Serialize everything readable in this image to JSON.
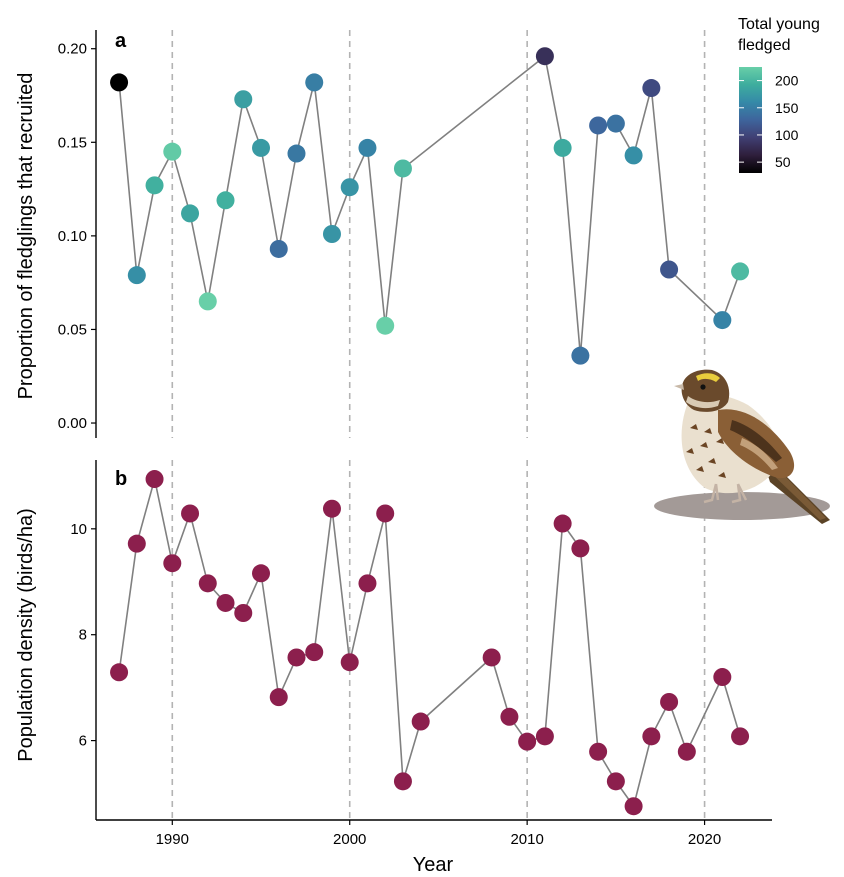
{
  "chart_data": [
    {
      "panel": "a",
      "type": "scatter",
      "ylabel": "Proportion of fledglings that recruited",
      "ylim": [
        -0.008,
        0.21
      ],
      "yticks": [
        0.0,
        0.05,
        0.1,
        0.15,
        0.2
      ],
      "ytick_labels": [
        "0.00",
        "0.05",
        "0.10",
        "0.15",
        "0.20"
      ],
      "connected": true,
      "color_legend": {
        "title_lines": [
          "Total young",
          "fledged"
        ],
        "labels": [
          "200",
          "150",
          "100",
          "50"
        ],
        "values": [
          200,
          150,
          100,
          50
        ],
        "range": [
          30,
          225
        ],
        "palette": [
          "#000000",
          "#2e1e3b",
          "#403f73",
          "#3e649c",
          "#3589a8",
          "#3ead9e",
          "#68cfa8"
        ]
      },
      "points": [
        {
          "x": 1987,
          "y": 0.182,
          "fledged": 30
        },
        {
          "x": 1988,
          "y": 0.079,
          "fledged": 165
        },
        {
          "x": 1989,
          "y": 0.127,
          "fledged": 195
        },
        {
          "x": 1990,
          "y": 0.145,
          "fledged": 220
        },
        {
          "x": 1991,
          "y": 0.112,
          "fledged": 185
        },
        {
          "x": 1992,
          "y": 0.065,
          "fledged": 225
        },
        {
          "x": 1993,
          "y": 0.119,
          "fledged": 195
        },
        {
          "x": 1994,
          "y": 0.173,
          "fledged": 180
        },
        {
          "x": 1995,
          "y": 0.147,
          "fledged": 175
        },
        {
          "x": 1996,
          "y": 0.093,
          "fledged": 135
        },
        {
          "x": 1997,
          "y": 0.144,
          "fledged": 145
        },
        {
          "x": 1998,
          "y": 0.182,
          "fledged": 150
        },
        {
          "x": 1999,
          "y": 0.101,
          "fledged": 170
        },
        {
          "x": 2000,
          "y": 0.126,
          "fledged": 170
        },
        {
          "x": 2001,
          "y": 0.147,
          "fledged": 155
        },
        {
          "x": 2002,
          "y": 0.052,
          "fledged": 225
        },
        {
          "x": 2003,
          "y": 0.136,
          "fledged": 205
        },
        {
          "x": 2011,
          "y": 0.196,
          "fledged": 80
        },
        {
          "x": 2012,
          "y": 0.147,
          "fledged": 190
        },
        {
          "x": 2013,
          "y": 0.036,
          "fledged": 140
        },
        {
          "x": 2014,
          "y": 0.159,
          "fledged": 130
        },
        {
          "x": 2015,
          "y": 0.16,
          "fledged": 140
        },
        {
          "x": 2016,
          "y": 0.143,
          "fledged": 165
        },
        {
          "x": 2017,
          "y": 0.179,
          "fledged": 105
        },
        {
          "x": 2018,
          "y": 0.082,
          "fledged": 115
        },
        {
          "x": 2021,
          "y": 0.055,
          "fledged": 155
        },
        {
          "x": 2022,
          "y": 0.081,
          "fledged": 205
        }
      ]
    },
    {
      "panel": "b",
      "type": "scatter",
      "ylabel": "Population density (birds/ha)",
      "xlabel": "Year",
      "ylim": [
        4.5,
        11.3
      ],
      "yticks": [
        6,
        8,
        10
      ],
      "ytick_labels": [
        "6",
        "8",
        "10"
      ],
      "connected": true,
      "color": "#8c1f4d",
      "points": [
        {
          "x": 1987,
          "y": 7.29
        },
        {
          "x": 1988,
          "y": 9.72
        },
        {
          "x": 1989,
          "y": 10.94
        },
        {
          "x": 1990,
          "y": 9.35
        },
        {
          "x": 1991,
          "y": 10.29
        },
        {
          "x": 1992,
          "y": 8.97
        },
        {
          "x": 1993,
          "y": 8.6
        },
        {
          "x": 1994,
          "y": 8.41
        },
        {
          "x": 1995,
          "y": 9.16
        },
        {
          "x": 1996,
          "y": 6.82
        },
        {
          "x": 1997,
          "y": 7.57
        },
        {
          "x": 1998,
          "y": 7.67
        },
        {
          "x": 1999,
          "y": 10.38
        },
        {
          "x": 2000,
          "y": 7.48
        },
        {
          "x": 2001,
          "y": 8.97
        },
        {
          "x": 2002,
          "y": 10.29
        },
        {
          "x": 2003,
          "y": 5.23
        },
        {
          "x": 2004,
          "y": 6.36
        },
        {
          "x": 2008,
          "y": 7.57
        },
        {
          "x": 2009,
          "y": 6.45
        },
        {
          "x": 2010,
          "y": 5.98
        },
        {
          "x": 2011,
          "y": 6.08
        },
        {
          "x": 2012,
          "y": 10.1
        },
        {
          "x": 2013,
          "y": 9.63
        },
        {
          "x": 2014,
          "y": 5.79
        },
        {
          "x": 2015,
          "y": 5.23
        },
        {
          "x": 2016,
          "y": 4.76
        },
        {
          "x": 2017,
          "y": 6.08
        },
        {
          "x": 2018,
          "y": 6.73
        },
        {
          "x": 2019,
          "y": 5.79
        },
        {
          "x": 2021,
          "y": 7.2
        },
        {
          "x": 2022,
          "y": 6.08
        }
      ]
    }
  ],
  "x_axis": {
    "title": "Year",
    "xlim": [
      1985.7,
      2023.8
    ],
    "ticks": [
      1990,
      2000,
      2010,
      2020
    ],
    "tick_labels": [
      "1990",
      "2000",
      "2010",
      "2020"
    ],
    "vlines": [
      1990,
      2000,
      2010,
      2020
    ]
  },
  "colors": {
    "line": "#808080",
    "vline": "#b3b3b3",
    "axis": "#000000"
  },
  "illustration": "savannah-sparrow"
}
